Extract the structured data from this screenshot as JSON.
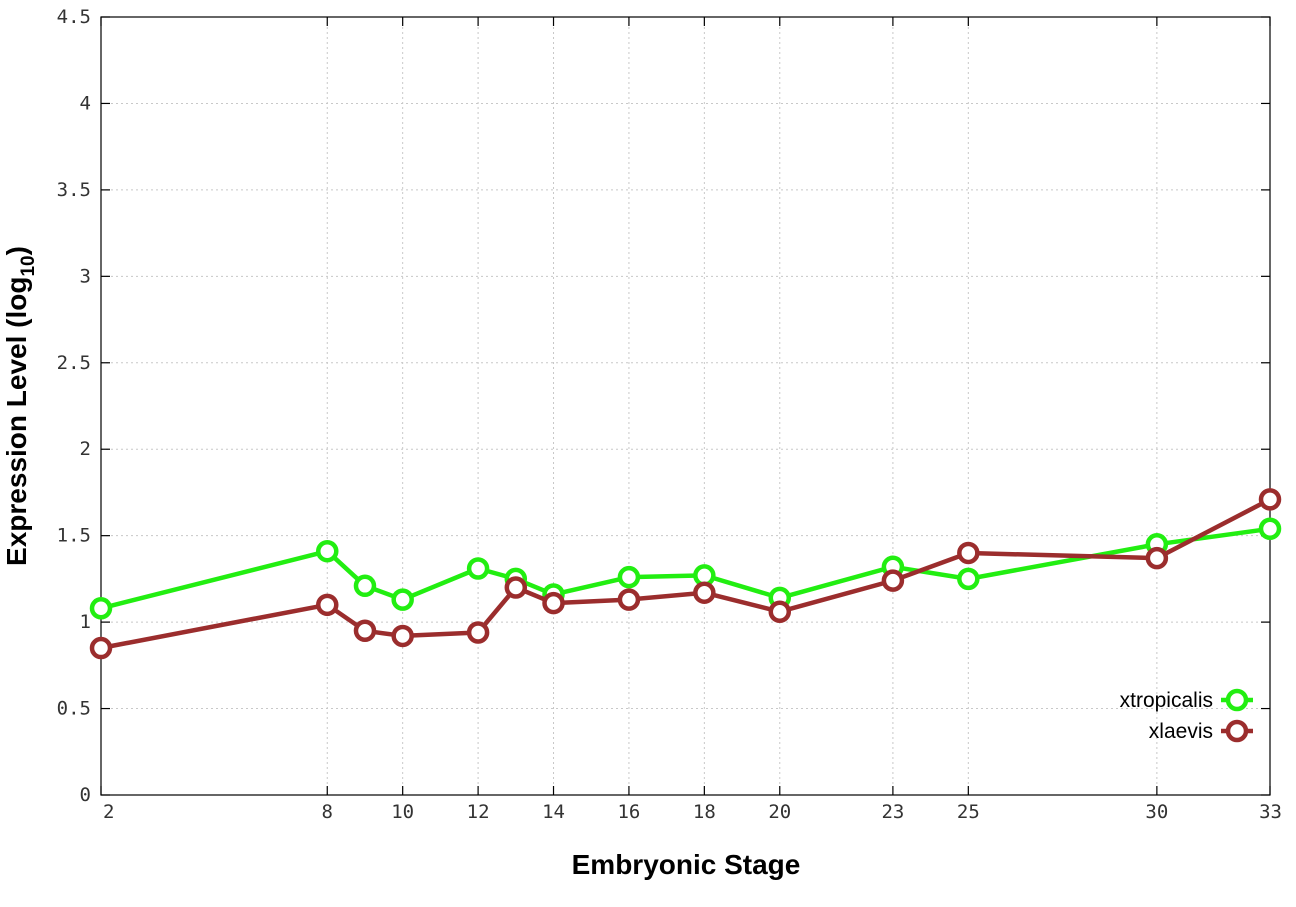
{
  "chart_data": {
    "type": "line",
    "xlabel": "Embryonic Stage",
    "ylabel_main": "Expression Level (log",
    "ylabel_sub": "10",
    "ylabel_close": ")",
    "xlim": [
      2,
      33
    ],
    "ylim": [
      0,
      4.5
    ],
    "x_ticks": [
      2,
      8,
      10,
      12,
      14,
      16,
      18,
      20,
      23,
      25,
      30,
      33
    ],
    "y_ticks": [
      0,
      0.5,
      1,
      1.5,
      2,
      2.5,
      3,
      3.5,
      4,
      4.5
    ],
    "y_tick_labels": [
      "0",
      "0.5",
      "1",
      "1.5",
      "2",
      "2.5",
      "3",
      "3.5",
      "4",
      "4.5"
    ],
    "grid": true,
    "legend_position": "bottom-right",
    "series": [
      {
        "name": "xtropicalis",
        "color": "#22ee11",
        "x": [
          2,
          8,
          9,
          10,
          12,
          13,
          14,
          16,
          18,
          20,
          23,
          25,
          30,
          33
        ],
        "y": [
          1.08,
          1.41,
          1.21,
          1.13,
          1.31,
          1.25,
          1.16,
          1.26,
          1.27,
          1.14,
          1.32,
          1.25,
          1.45,
          1.54
        ]
      },
      {
        "name": "xlaevis",
        "color": "#9b2d2d",
        "x": [
          2,
          8,
          9,
          10,
          12,
          13,
          14,
          16,
          18,
          20,
          23,
          25,
          30,
          33
        ],
        "y": [
          0.85,
          1.1,
          0.95,
          0.92,
          0.94,
          1.2,
          1.11,
          1.13,
          1.17,
          1.06,
          1.24,
          1.4,
          1.37,
          1.71
        ]
      }
    ]
  }
}
